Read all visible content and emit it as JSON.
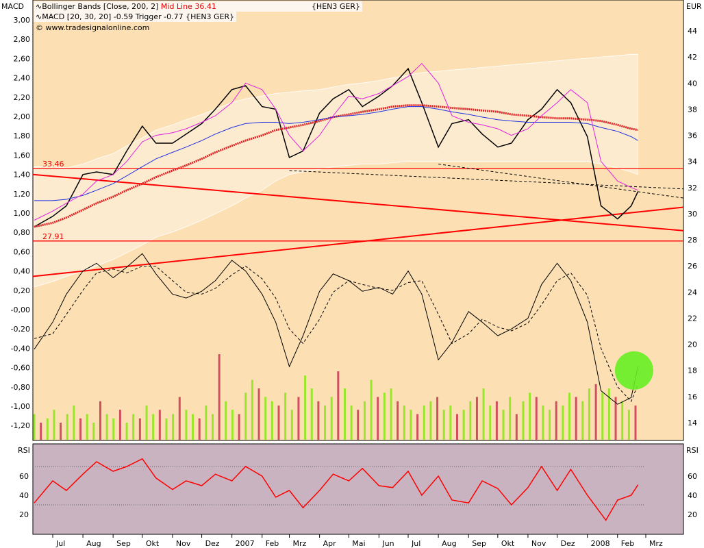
{
  "header": {
    "left_axis_title": "MACD",
    "right_axis_title": "EUR",
    "rsi_title": "RSI",
    "legend_bb": "Bollinger Bands [Close, 200, 2]",
    "legend_bb_mid": "Mid Line 36.41",
    "legend_symbol": "{HEN3 GER}",
    "legend_macd": "MACD [20, 30, 20] -0.59 Trigger -0.77 {HEN3 GER}",
    "copyright": "© www.tradesignalonline.com"
  },
  "colors": {
    "panel_bg": "#fce0b4",
    "band_fill": "#fdebd0",
    "rsi_bg": "#c9b3c1",
    "midline": "#e02020",
    "ma_blue": "#2030e0",
    "magenta": "#e020e0",
    "rsi_line": "#ff0000",
    "vol_green": "#99e62a",
    "vol_red": "#d05060",
    "signal_circle": "#66ee22"
  },
  "chart_data": [
    {
      "type": "line",
      "title": "Bollinger Bands / MACD",
      "left_axis": {
        "label": "MACD",
        "range": [
          -1.2,
          3.0
        ],
        "ticks": [
          "3,00",
          "2,80",
          "2,60",
          "2,40",
          "2,20",
          "2,00",
          "1,80",
          "1,60",
          "1,40",
          "1,20",
          "1,00",
          "0,80",
          "0,60",
          "0,40",
          "0,20",
          "-0,00",
          "-0,20",
          "-0,40",
          "-0,60",
          "-0,80",
          "-1,00",
          "-1,20"
        ]
      },
      "right_axis": {
        "label": "EUR",
        "range": [
          14,
          44
        ],
        "ticks": [
          "44",
          "42",
          "40",
          "38",
          "36",
          "34",
          "32",
          "30",
          "28",
          "26",
          "24",
          "22",
          "20",
          "18",
          "16",
          "14"
        ]
      },
      "x_ticks": [
        [
          "Jul",
          "2006-07-01"
        ],
        [
          "Aug",
          "2006-08-01"
        ],
        [
          "Sep",
          "2006-09-01"
        ],
        [
          "Okt",
          "2006-10-01"
        ],
        [
          "Nov",
          "2006-11-01"
        ],
        [
          "Dez",
          "2006-12-01"
        ],
        [
          "2007",
          "2007-01-01"
        ],
        [
          "Feb",
          "2007-02-01"
        ],
        [
          "Mrz",
          "2007-03-01"
        ],
        [
          "Apr",
          "2007-04-01"
        ],
        [
          "Mai",
          "2007-05-01"
        ],
        [
          "Jun",
          "2007-06-01"
        ],
        [
          "Jul",
          "2007-07-01"
        ],
        [
          "Aug",
          "2007-08-01"
        ],
        [
          "Sep",
          "2007-09-01"
        ],
        [
          "Okt",
          "2007-10-01"
        ],
        [
          "Nov",
          "2007-11-01"
        ],
        [
          "Dez",
          "2007-12-01"
        ],
        [
          "2008",
          "2008-01-01"
        ],
        [
          "Feb",
          "2008-02-01"
        ],
        [
          "Mrz",
          "2008-03-01"
        ]
      ],
      "dates": [
        "2006-06-12",
        "2006-07-01",
        "2006-07-15",
        "2006-08-01",
        "2006-08-15",
        "2006-09-01",
        "2006-09-15",
        "2006-10-01",
        "2006-10-15",
        "2006-11-01",
        "2006-11-15",
        "2006-12-01",
        "2006-12-15",
        "2007-01-01",
        "2007-01-15",
        "2007-02-01",
        "2007-02-15",
        "2007-03-01",
        "2007-03-15",
        "2007-04-01",
        "2007-04-15",
        "2007-05-01",
        "2007-05-15",
        "2007-06-01",
        "2007-06-15",
        "2007-07-01",
        "2007-07-15",
        "2007-08-01",
        "2007-08-15",
        "2007-09-01",
        "2007-09-15",
        "2007-10-01",
        "2007-10-15",
        "2007-11-01",
        "2007-11-15",
        "2007-12-01",
        "2007-12-15",
        "2008-01-01",
        "2008-01-15",
        "2008-02-01",
        "2008-02-15",
        "2008-02-22"
      ],
      "series": [
        {
          "name": "Close",
          "axis": "right",
          "values": [
            29.0,
            29.8,
            30.6,
            33.0,
            33.2,
            33.0,
            34.8,
            36.7,
            35.4,
            35.4,
            36.1,
            36.9,
            38.0,
            39.5,
            39.8,
            38.2,
            38.0,
            34.3,
            34.8,
            37.7,
            38.8,
            39.5,
            38.2,
            39.0,
            39.8,
            41.1,
            38.5,
            35.1,
            36.9,
            37.2,
            36.1,
            35.1,
            35.4,
            37.2,
            38.0,
            39.5,
            38.5,
            35.9,
            30.6,
            29.6,
            30.6,
            31.7
          ]
        },
        {
          "name": "Mid Line",
          "axis": "right",
          "values": [
            29.0,
            29.3,
            29.7,
            30.3,
            30.8,
            31.3,
            31.8,
            32.3,
            32.8,
            33.3,
            33.7,
            34.2,
            34.7,
            35.2,
            35.6,
            36.0,
            36.4,
            36.6,
            36.8,
            37.1,
            37.4,
            37.6,
            37.8,
            38.0,
            38.2,
            38.3,
            38.3,
            38.2,
            38.1,
            38.0,
            37.9,
            37.8,
            37.6,
            37.5,
            37.4,
            37.3,
            37.3,
            37.2,
            37.1,
            36.8,
            36.5,
            36.41
          ]
        },
        {
          "name": "Upper Band",
          "axis": "right",
          "values": [
            33.6,
            33.6,
            33.5,
            33.8,
            34.2,
            34.6,
            35.2,
            35.8,
            36.4,
            36.8,
            37.2,
            37.6,
            38.0,
            38.5,
            38.8,
            39.0,
            39.2,
            39.3,
            39.4,
            39.5,
            39.7,
            39.9,
            40.0,
            40.2,
            40.4,
            40.6,
            40.8,
            40.9,
            41.0,
            41.1,
            41.2,
            41.3,
            41.4,
            41.5,
            41.6,
            41.7,
            41.8,
            41.9,
            42.0,
            42.1,
            42.2,
            42.2
          ]
        },
        {
          "name": "Lower Band",
          "axis": "right",
          "values": [
            24.4,
            24.8,
            25.2,
            25.6,
            26.0,
            26.5,
            27.0,
            27.6,
            28.2,
            28.6,
            29.0,
            29.5,
            30.0,
            30.6,
            31.2,
            31.8,
            32.5,
            33.0,
            33.2,
            33.4,
            33.6,
            33.7,
            33.8,
            33.8,
            33.9,
            34.0,
            34.0,
            34.0,
            34.0,
            34.0,
            34.0,
            34.0,
            34.0,
            34.0,
            34.0,
            34.0,
            34.0,
            34.0,
            33.8,
            33.5,
            33.2,
            33.0
          ]
        },
        {
          "name": "Moving Average",
          "axis": "right",
          "values": [
            31.0,
            31.0,
            31.1,
            31.4,
            31.8,
            32.3,
            32.9,
            33.6,
            34.2,
            34.7,
            35.1,
            35.6,
            36.1,
            36.6,
            36.9,
            37.0,
            37.0,
            36.9,
            37.0,
            37.2,
            37.4,
            37.5,
            37.6,
            37.8,
            38.0,
            38.2,
            38.2,
            38.0,
            37.8,
            37.6,
            37.4,
            37.2,
            37.1,
            37.0,
            37.0,
            37.0,
            37.0,
            36.9,
            36.6,
            36.3,
            35.9,
            35.6
          ]
        },
        {
          "name": "Envelope",
          "axis": "right",
          "values": [
            29.5,
            30.2,
            30.8,
            31.5,
            32.5,
            33.0,
            34.0,
            35.5,
            36.0,
            36.2,
            36.5,
            37.0,
            37.5,
            38.5,
            40.0,
            39.5,
            38.0,
            36.0,
            34.8,
            36.0,
            37.5,
            39.0,
            38.8,
            39.2,
            39.8,
            40.5,
            41.5,
            40.0,
            37.5,
            37.0,
            36.8,
            36.5,
            36.0,
            36.5,
            37.5,
            38.5,
            39.5,
            38.5,
            34.0,
            32.5,
            32.0,
            31.8
          ]
        },
        {
          "name": "MACD",
          "axis": "left",
          "values": [
            -0.41,
            -0.13,
            0.16,
            0.4,
            0.48,
            0.33,
            0.44,
            0.58,
            0.37,
            0.16,
            0.12,
            0.19,
            0.3,
            0.51,
            0.4,
            0.16,
            -0.13,
            -0.59,
            -0.27,
            0.19,
            0.37,
            0.3,
            0.19,
            0.23,
            0.16,
            0.4,
            0.16,
            -0.52,
            -0.34,
            -0.02,
            -0.13,
            -0.27,
            -0.2,
            -0.09,
            0.26,
            0.48,
            0.3,
            -0.13,
            -0.84,
            -0.98,
            -0.91,
            -0.59
          ]
        },
        {
          "name": "Trigger",
          "axis": "left",
          "values": [
            -0.3,
            -0.25,
            -0.05,
            0.2,
            0.38,
            0.42,
            0.38,
            0.45,
            0.45,
            0.3,
            0.18,
            0.16,
            0.22,
            0.36,
            0.45,
            0.32,
            0.12,
            -0.2,
            -0.35,
            -0.1,
            0.18,
            0.3,
            0.26,
            0.22,
            0.2,
            0.28,
            0.3,
            -0.05,
            -0.35,
            -0.25,
            -0.1,
            -0.18,
            -0.22,
            -0.14,
            0.05,
            0.3,
            0.38,
            0.15,
            -0.4,
            -0.8,
            -0.95,
            -0.77
          ]
        }
      ],
      "horizontal_lines": [
        {
          "label": "33.46",
          "value": 33.46
        },
        {
          "label": "27.91",
          "value": 27.91
        }
      ],
      "trend_lines": [
        {
          "from": [
            "2006-06-12",
            33.0
          ],
          "to": [
            "2008-03-20",
            28.7
          ]
        },
        {
          "from": [
            "2006-06-12",
            25.2
          ],
          "to": [
            "2008-03-20",
            30.5
          ]
        }
      ],
      "dashed_lines": [
        {
          "from": [
            "2007-03-01",
            33.3
          ],
          "to": [
            "2008-03-20",
            31.9
          ]
        },
        {
          "from": [
            "2007-08-01",
            33.8
          ],
          "to": [
            "2008-03-20",
            31.2
          ]
        }
      ],
      "annotation": {
        "type": "circle",
        "at": [
          "2008-02-18",
          18.0
        ]
      },
      "volume_relative": [
        0.3,
        0.2,
        0.25,
        0.35,
        0.2,
        0.3,
        0.4,
        0.25,
        0.3,
        0.2,
        0.45,
        0.3,
        0.25,
        0.35,
        0.2,
        0.3,
        0.25,
        0.4,
        0.3,
        0.35,
        0.25,
        0.3,
        0.5,
        0.35,
        0.3,
        0.25,
        0.4,
        0.3,
        1.0,
        0.45,
        0.35,
        0.3,
        0.55,
        0.7,
        0.6,
        0.5,
        0.45,
        0.4,
        0.55,
        0.35,
        0.5,
        0.75,
        0.6,
        0.45,
        0.4,
        0.5,
        0.8,
        0.6,
        0.4,
        0.35,
        0.45,
        0.7,
        0.5,
        0.55,
        0.6,
        0.45,
        0.4,
        0.35,
        0.3,
        0.4,
        0.45,
        0.5,
        0.35,
        0.4,
        0.3,
        0.35,
        0.45,
        0.5,
        0.6,
        0.4,
        0.45,
        0.35,
        0.5,
        0.3,
        0.45,
        0.55,
        0.5,
        0.4,
        0.35,
        0.45,
        0.4,
        0.55,
        0.5,
        0.45,
        0.6,
        0.65,
        0.55,
        0.6,
        0.5,
        0.45,
        0.35,
        0.4
      ]
    },
    {
      "type": "line",
      "title": "RSI",
      "ylim": [
        0,
        100
      ],
      "ticks": [
        "60",
        "40",
        "20"
      ],
      "reference_lines": [
        70,
        30
      ],
      "dates": [
        "2006-06-12",
        "2006-07-01",
        "2006-07-15",
        "2006-08-01",
        "2006-08-15",
        "2006-09-01",
        "2006-09-15",
        "2006-10-01",
        "2006-10-15",
        "2006-11-01",
        "2006-11-15",
        "2006-12-01",
        "2006-12-15",
        "2007-01-01",
        "2007-01-15",
        "2007-02-01",
        "2007-02-15",
        "2007-03-01",
        "2007-03-15",
        "2007-04-01",
        "2007-04-15",
        "2007-05-01",
        "2007-05-15",
        "2007-06-01",
        "2007-06-15",
        "2007-07-01",
        "2007-07-15",
        "2007-08-01",
        "2007-08-15",
        "2007-09-01",
        "2007-09-15",
        "2007-10-01",
        "2007-10-15",
        "2007-11-01",
        "2007-11-15",
        "2007-12-01",
        "2007-12-15",
        "2008-01-01",
        "2008-01-20",
        "2008-02-01",
        "2008-02-15",
        "2008-02-22"
      ],
      "values": [
        32,
        55,
        45,
        62,
        75,
        65,
        70,
        78,
        58,
        46,
        55,
        50,
        62,
        55,
        70,
        60,
        38,
        45,
        27,
        45,
        62,
        55,
        68,
        50,
        48,
        65,
        40,
        60,
        35,
        32,
        55,
        47,
        30,
        48,
        70,
        45,
        67,
        40,
        14,
        35,
        40,
        51
      ]
    }
  ]
}
